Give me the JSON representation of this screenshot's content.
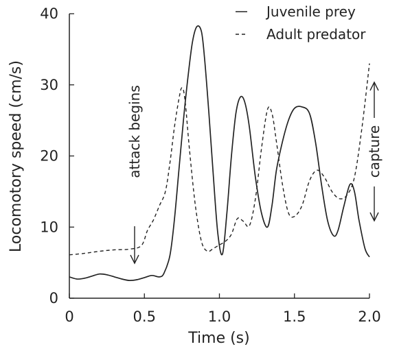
{
  "chart_data": {
    "type": "line",
    "title": "",
    "xlabel": "Time  (s)",
    "ylabel": "Locomotory  speed  (cm/s)",
    "xlim": [
      0,
      2.0
    ],
    "ylim": [
      0,
      40
    ],
    "x_ticks": [
      "0",
      "0.5",
      "1.0",
      "1.5",
      "2.0"
    ],
    "y_ticks": [
      "0",
      "10",
      "20",
      "30",
      "40"
    ],
    "grid": false,
    "legend_position": "top-right",
    "series": [
      {
        "name": "Juvenile prey",
        "line_style": "solid",
        "points": [
          [
            0.0,
            3.0
          ],
          [
            0.05,
            2.7
          ],
          [
            0.1,
            2.8
          ],
          [
            0.15,
            3.1
          ],
          [
            0.2,
            3.4
          ],
          [
            0.25,
            3.3
          ],
          [
            0.3,
            3.0
          ],
          [
            0.35,
            2.7
          ],
          [
            0.4,
            2.5
          ],
          [
            0.45,
            2.6
          ],
          [
            0.5,
            2.9
          ],
          [
            0.55,
            3.2
          ],
          [
            0.6,
            3.0
          ],
          [
            0.63,
            3.5
          ],
          [
            0.67,
            6.0
          ],
          [
            0.7,
            11.0
          ],
          [
            0.73,
            18.0
          ],
          [
            0.76,
            25.0
          ],
          [
            0.79,
            31.0
          ],
          [
            0.82,
            36.0
          ],
          [
            0.85,
            38.2
          ],
          [
            0.88,
            37.5
          ],
          [
            0.9,
            34.0
          ],
          [
            0.93,
            26.0
          ],
          [
            0.96,
            17.0
          ],
          [
            0.99,
            9.0
          ],
          [
            1.02,
            6.2
          ],
          [
            1.05,
            12.0
          ],
          [
            1.08,
            20.0
          ],
          [
            1.11,
            26.0
          ],
          [
            1.14,
            28.3
          ],
          [
            1.17,
            27.5
          ],
          [
            1.2,
            24.0
          ],
          [
            1.24,
            17.0
          ],
          [
            1.28,
            12.0
          ],
          [
            1.32,
            10.0
          ],
          [
            1.35,
            13.0
          ],
          [
            1.38,
            18.0
          ],
          [
            1.42,
            22.0
          ],
          [
            1.46,
            25.0
          ],
          [
            1.5,
            26.7
          ],
          [
            1.55,
            26.9
          ],
          [
            1.6,
            26.0
          ],
          [
            1.64,
            22.0
          ],
          [
            1.68,
            16.0
          ],
          [
            1.72,
            11.0
          ],
          [
            1.76,
            8.8
          ],
          [
            1.79,
            9.5
          ],
          [
            1.83,
            13.0
          ],
          [
            1.87,
            16.0
          ],
          [
            1.9,
            15.0
          ],
          [
            1.93,
            11.0
          ],
          [
            1.97,
            7.0
          ],
          [
            2.0,
            5.8
          ]
        ]
      },
      {
        "name": "Adult predator",
        "line_style": "dashed",
        "points": [
          [
            0.0,
            6.1
          ],
          [
            0.1,
            6.3
          ],
          [
            0.2,
            6.6
          ],
          [
            0.3,
            6.8
          ],
          [
            0.4,
            6.9
          ],
          [
            0.48,
            7.4
          ],
          [
            0.52,
            9.5
          ],
          [
            0.56,
            11.0
          ],
          [
            0.6,
            13.0
          ],
          [
            0.64,
            15.0
          ],
          [
            0.67,
            19.0
          ],
          [
            0.7,
            24.0
          ],
          [
            0.73,
            28.0
          ],
          [
            0.75,
            29.6
          ],
          [
            0.77,
            28.0
          ],
          [
            0.8,
            21.0
          ],
          [
            0.84,
            13.0
          ],
          [
            0.88,
            8.0
          ],
          [
            0.92,
            6.6
          ],
          [
            0.96,
            7.0
          ],
          [
            1.0,
            7.5
          ],
          [
            1.04,
            8.0
          ],
          [
            1.08,
            9.0
          ],
          [
            1.12,
            11.2
          ],
          [
            1.16,
            10.8
          ],
          [
            1.2,
            10.2
          ],
          [
            1.24,
            14.0
          ],
          [
            1.28,
            21.0
          ],
          [
            1.32,
            26.5
          ],
          [
            1.35,
            26.0
          ],
          [
            1.38,
            22.0
          ],
          [
            1.42,
            16.0
          ],
          [
            1.46,
            12.0
          ],
          [
            1.5,
            11.5
          ],
          [
            1.55,
            13.0
          ],
          [
            1.6,
            16.5
          ],
          [
            1.65,
            18.0
          ],
          [
            1.7,
            17.0
          ],
          [
            1.75,
            15.0
          ],
          [
            1.8,
            14.0
          ],
          [
            1.85,
            14.5
          ],
          [
            1.9,
            17.0
          ],
          [
            1.95,
            24.0
          ],
          [
            2.0,
            33.0
          ]
        ]
      }
    ],
    "annotations": [
      {
        "label": "attack begins",
        "x": 0.43,
        "arrow": "down"
      },
      {
        "label": "capture",
        "x": 2.0,
        "arrow": "up-and-down"
      }
    ]
  }
}
